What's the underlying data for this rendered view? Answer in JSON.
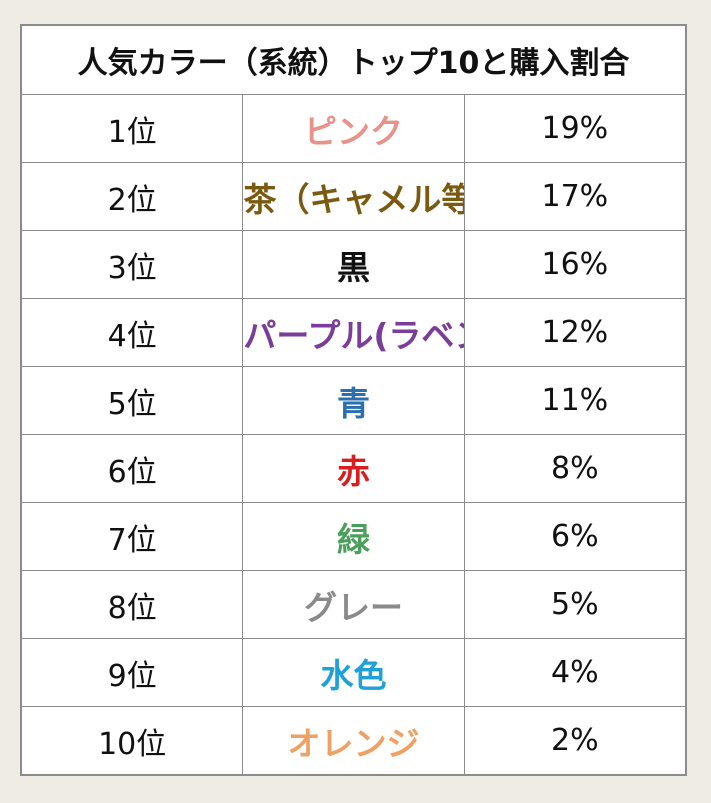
{
  "title": "人気カラー（系統）トップ10と購入割合",
  "rows": [
    {
      "rank": "1位",
      "color": "ピンク",
      "percent": "19%",
      "text_color": "#e8928a"
    },
    {
      "rank": "2位",
      "color": "茶（キャメル等）",
      "percent": "17%",
      "text_color": "#7a5a10"
    },
    {
      "rank": "3位",
      "color": "黒",
      "percent": "16%",
      "text_color": "#111111"
    },
    {
      "rank": "4位",
      "color": "パープル(ラベンダー等)",
      "percent": "12%",
      "text_color": "#7a3d9a"
    },
    {
      "rank": "5位",
      "color": "青",
      "percent": "11%",
      "text_color": "#2a6fb0"
    },
    {
      "rank": "6位",
      "color": "赤",
      "percent": "8%",
      "text_color": "#d81e1e"
    },
    {
      "rank": "7位",
      "color": "緑",
      "percent": "6%",
      "text_color": "#4aa05a"
    },
    {
      "rank": "8位",
      "color": "グレー",
      "percent": "5%",
      "text_color": "#8a8a8a"
    },
    {
      "rank": "9位",
      "color": "水色",
      "percent": "4%",
      "text_color": "#1ea0d8"
    },
    {
      "rank": "10位",
      "color": "オレンジ",
      "percent": "2%",
      "text_color": "#f0a062"
    }
  ]
}
